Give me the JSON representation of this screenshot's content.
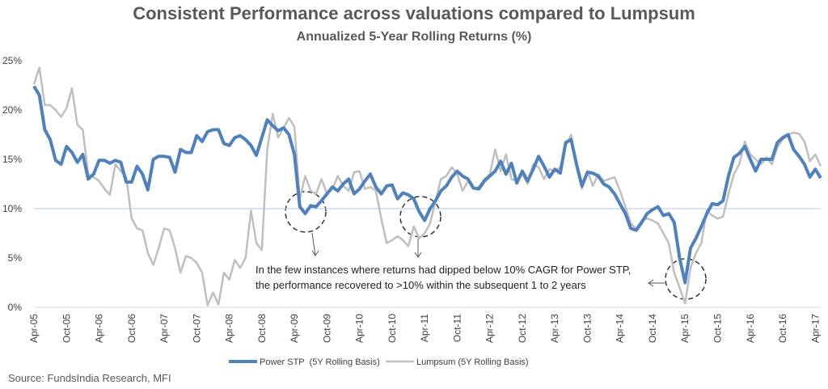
{
  "chart_data": {
    "type": "line",
    "title": "Consistent Performance across valuations compared to Lumpsum",
    "subtitle": "Annualized 5-Year Rolling Returns (%)",
    "categories": [
      "Apr-05",
      null,
      null,
      null,
      null,
      null,
      "Oct-05",
      null,
      null,
      null,
      null,
      null,
      "Apr-06",
      null,
      null,
      null,
      null,
      null,
      "Oct-06",
      null,
      null,
      null,
      null,
      null,
      "Apr-07",
      null,
      null,
      null,
      null,
      null,
      "Oct-07",
      null,
      null,
      null,
      null,
      null,
      "Apr-08",
      null,
      null,
      null,
      null,
      null,
      "Oct-08",
      null,
      null,
      null,
      null,
      null,
      "Apr-09",
      null,
      null,
      null,
      null,
      null,
      "Oct-09",
      null,
      null,
      null,
      null,
      null,
      "Apr-10",
      null,
      null,
      null,
      null,
      null,
      "Oct-10",
      null,
      null,
      null,
      null,
      null,
      "Apr-11",
      null,
      null,
      null,
      null,
      null,
      "Oct-11",
      null,
      null,
      null,
      null,
      null,
      "Apr-12",
      null,
      null,
      null,
      null,
      null,
      "Oct-12",
      null,
      null,
      null,
      null,
      null,
      "Apr-13",
      null,
      null,
      null,
      null,
      null,
      "Oct-13",
      null,
      null,
      null,
      null,
      null,
      "Apr-14",
      null,
      null,
      null,
      null,
      null,
      "Oct-14",
      null,
      null,
      null,
      null,
      null,
      "Apr-15",
      null,
      null,
      null,
      null,
      null,
      "Oct-15",
      null,
      null,
      null,
      null,
      null,
      "Apr-16",
      null,
      null,
      null,
      null,
      null,
      "Oct-16",
      null,
      null,
      null,
      null,
      null,
      "Apr-17",
      null
    ],
    "series": [
      {
        "name": "Power STP  (5Y Rolling Basis)",
        "color": "#4f81bd",
        "values": [
          22.4,
          21.5,
          18,
          17,
          14.9,
          14.5,
          16.3,
          15.7,
          14.7,
          15.5,
          13,
          13.5,
          14.9,
          14.9,
          14.6,
          14.9,
          14.7,
          12.7,
          12.7,
          14.3,
          13.5,
          11.9,
          15,
          15.3,
          15.3,
          15.2,
          13.7,
          16,
          15.7,
          15.7,
          17.4,
          16.8,
          17.8,
          18,
          18,
          16.6,
          16.4,
          17.2,
          17.4,
          17,
          16.4,
          15.4,
          17.2,
          19,
          18.4,
          17.9,
          18.2,
          17.5,
          15.5,
          10.2,
          9.5,
          10.3,
          10.2,
          10.8,
          11.5,
          12.2,
          11.8,
          12.5,
          13,
          11.5,
          12,
          12.8,
          13.5,
          12.2,
          11.5,
          12.3,
          12.4,
          11,
          11.6,
          11.4,
          11,
          9.7,
          8.8,
          10,
          10.8,
          11.8,
          12.3,
          13.2,
          13.8,
          13.3,
          13,
          12.1,
          12,
          12.8,
          13.3,
          13.8,
          14.8,
          13.5,
          14.6,
          12.6,
          13.8,
          12.8,
          14,
          15.3,
          14.3,
          13.2,
          14,
          13.6,
          16.7,
          17,
          14.5,
          12.3,
          13.7,
          13.6,
          13.3,
          12.5,
          12.2,
          11.5,
          10.5,
          9.5,
          8,
          7.8,
          8.6,
          9.5,
          9.9,
          10.2,
          9.3,
          9.5,
          8.6,
          5,
          2.5,
          6,
          7,
          8.2,
          9.5,
          10.5,
          10.4,
          10.8,
          13.3,
          15.2,
          15.6,
          16.3,
          15,
          13.8,
          15,
          15,
          15,
          16.7,
          17.2,
          17.5,
          16,
          15.3,
          14.5,
          13.2,
          14,
          13.1
        ]
      },
      {
        "name": "Lumpsum (5Y Rolling Basis)",
        "color": "#bfbfbf",
        "values": [
          22.6,
          24.3,
          20.5,
          20.5,
          20,
          19.3,
          20.2,
          22.2,
          18.5,
          18,
          13.5,
          13.2,
          12.8,
          12,
          11.4,
          14.5,
          13.8,
          13.2,
          9,
          8,
          7.8,
          5.5,
          4.3,
          6,
          8,
          7.8,
          6,
          3.5,
          5.2,
          5,
          4.5,
          3.5,
          0.2,
          1.5,
          0.3,
          3.5,
          2.8,
          4.8,
          4,
          5,
          9.8,
          6.5,
          5.8,
          16,
          19.6,
          17.2,
          18.2,
          19.2,
          18.3,
          11,
          13.3,
          11.8,
          11.5,
          13,
          11.5,
          12,
          13.3,
          12.3,
          11.8,
          13.7,
          13.8,
          12,
          12.2,
          11.8,
          9,
          6.5,
          6.8,
          7.2,
          6.8,
          6.2,
          8.2,
          7,
          7.5,
          8.5,
          10.8,
          13,
          13.3,
          14.2,
          13.5,
          11.8,
          12.8,
          12,
          12.2,
          13,
          13.5,
          16,
          13.8,
          15.5,
          13,
          12.8,
          13.5,
          12.5,
          14.5,
          14.2,
          13,
          14,
          13.8,
          14.2,
          16.3,
          17.5,
          14.2,
          12,
          13.8,
          12.3,
          13.5,
          12.8,
          13,
          13.2,
          11.8,
          10.2,
          8.5,
          8,
          8.8,
          9,
          8.8,
          8.5,
          7.5,
          6.5,
          3.5,
          2,
          0.4,
          4,
          5.5,
          6.5,
          9.8,
          9.3,
          9,
          9.2,
          11.5,
          13.5,
          14.5,
          16.8,
          15.5,
          15,
          14.5,
          15.2,
          14.5,
          16.2,
          17,
          17.5,
          17.7,
          17.6,
          16.8,
          14.8,
          15.5,
          14.3
        ]
      }
    ],
    "ylim": [
      0,
      25
    ],
    "yticks": [
      {
        "value": 0,
        "label": "0%"
      },
      {
        "value": 5,
        "label": "5%"
      },
      {
        "value": 10,
        "label": "10%"
      },
      {
        "value": 15,
        "label": "15%"
      },
      {
        "value": 20,
        "label": "20%"
      },
      {
        "value": 25,
        "label": "25%"
      }
    ],
    "reference_line": 10,
    "annotation": [
      "In the few instances where returns had dipped below 10% CAGR for Power STP,",
      "the performance recovered to >10% within the subsequent 1 to 2 years"
    ],
    "source": "Source: FundsIndia Research, MFI",
    "legend": "bottom"
  }
}
